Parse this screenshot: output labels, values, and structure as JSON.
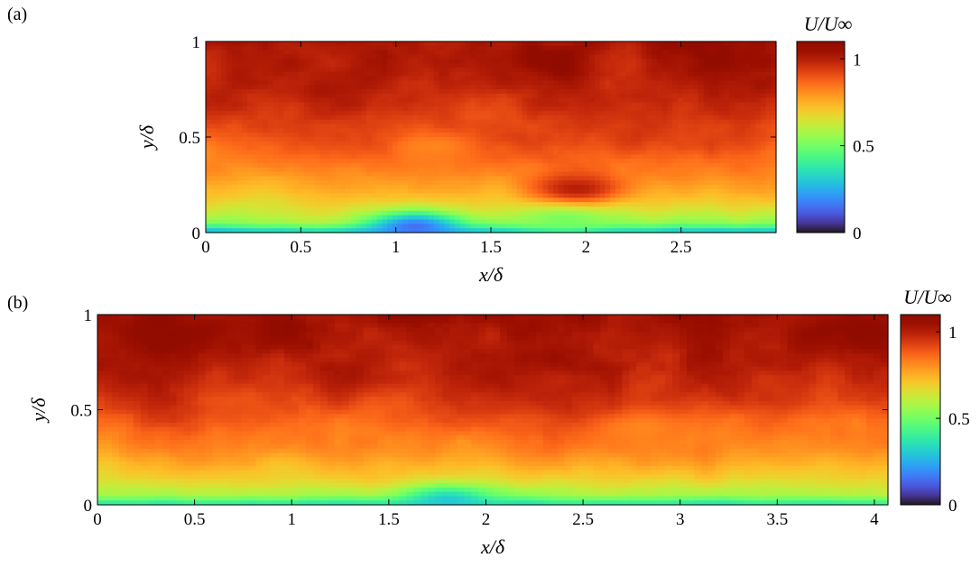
{
  "chart_data": [
    {
      "type": "heatmap",
      "panel_label": "(a)",
      "xlabel": "x/δ",
      "ylabel": "y/δ",
      "xlim": [
        0,
        3
      ],
      "ylim": [
        0,
        1
      ],
      "xticks": [
        0,
        0.5,
        1,
        1.5,
        2,
        2.5
      ],
      "yticks": [
        0,
        0.5,
        1
      ],
      "colorbar": {
        "label": "U/U∞",
        "ticks": [
          0,
          0.5,
          1
        ],
        "range": [
          0,
          1.1
        ],
        "colormap": "turbo"
      },
      "field_description_values": {
        "y_profile": [
          [
            0.0,
            0.25
          ],
          [
            0.02,
            0.42
          ],
          [
            0.06,
            0.58
          ],
          [
            0.15,
            0.68
          ],
          [
            0.3,
            0.8
          ],
          [
            0.5,
            0.92
          ],
          [
            0.75,
            1.0
          ],
          [
            1.0,
            1.05
          ]
        ],
        "features": [
          {
            "x": 1.1,
            "y": 0.03,
            "value": 0.15
          },
          {
            "x": 1.9,
            "y": 0.08,
            "value": 0.5
          },
          {
            "x": 1.2,
            "y": 0.45,
            "value": 0.82
          },
          {
            "x": 1.95,
            "y": 0.23,
            "value": 1.0
          }
        ]
      }
    },
    {
      "type": "heatmap",
      "panel_label": "(b)",
      "xlabel": "x/δ",
      "ylabel": "y/δ",
      "xlim": [
        0,
        4.07
      ],
      "ylim": [
        0,
        1
      ],
      "xticks": [
        0,
        0.5,
        1,
        1.5,
        2,
        2.5,
        3,
        3.5,
        4
      ],
      "yticks": [
        0,
        0.5,
        1
      ],
      "colorbar": {
        "label": "U/U∞",
        "ticks": [
          0,
          0.5,
          1
        ],
        "range": [
          0,
          1.1
        ],
        "colormap": "turbo"
      },
      "field_description_values": {
        "y_profile": [
          [
            0.0,
            0.35
          ],
          [
            0.02,
            0.45
          ],
          [
            0.05,
            0.58
          ],
          [
            0.15,
            0.7
          ],
          [
            0.3,
            0.82
          ],
          [
            0.5,
            0.93
          ],
          [
            0.75,
            1.0
          ],
          [
            1.0,
            1.06
          ]
        ],
        "features": [
          {
            "x": 0.3,
            "y": 0.9,
            "value": 1.08
          },
          {
            "x": 2.8,
            "y": 0.4,
            "value": 0.82
          },
          {
            "x": 1.8,
            "y": 0.02,
            "value": 0.3
          }
        ]
      }
    }
  ],
  "colors": {
    "axis": "#000000",
    "background": "#ffffff"
  }
}
